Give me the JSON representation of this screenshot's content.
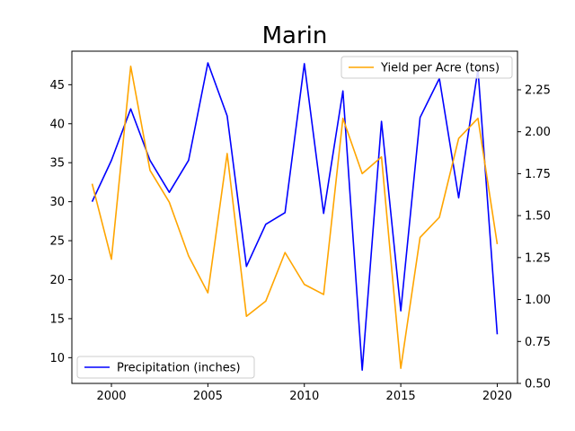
{
  "chart_data": {
    "type": "line",
    "title": "Marin",
    "x": [
      1999,
      2000,
      2001,
      2002,
      2003,
      2004,
      2005,
      2006,
      2007,
      2008,
      2009,
      2010,
      2011,
      2012,
      2013,
      2014,
      2015,
      2016,
      2017,
      2018,
      2019,
      2020
    ],
    "xlim": [
      1997.95,
      2021.05
    ],
    "xticks": [
      2000,
      2005,
      2010,
      2015,
      2020
    ],
    "left_axis": {
      "ylim": [
        6.7,
        49.3
      ],
      "ticks": [
        10,
        15,
        20,
        25,
        30,
        35,
        40,
        45
      ]
    },
    "right_axis": {
      "ylim": [
        0.5,
        2.48
      ],
      "ticks": [
        0.5,
        0.75,
        1.0,
        1.25,
        1.5,
        1.75,
        2.0,
        2.25
      ]
    },
    "series": [
      {
        "name": "Precipitation (inches)",
        "axis": "left",
        "color": "#0000ff",
        "legend_position": "lower-left",
        "values": [
          30.0,
          35.3,
          41.9,
          35.3,
          31.2,
          35.3,
          47.8,
          41.0,
          21.7,
          27.1,
          28.6,
          47.7,
          28.5,
          44.2,
          8.4,
          40.3,
          16.0,
          40.8,
          45.8,
          30.5,
          47.0,
          13.0
        ]
      },
      {
        "name": "Yield per Acre (tons)",
        "axis": "right",
        "color": "#ffa500",
        "legend_position": "upper-right",
        "values": [
          1.69,
          1.24,
          2.39,
          1.77,
          1.58,
          1.26,
          1.04,
          1.87,
          0.9,
          0.99,
          1.28,
          1.09,
          1.03,
          2.08,
          1.75,
          1.85,
          0.59,
          1.37,
          1.49,
          1.96,
          2.08,
          1.33
        ]
      }
    ]
  }
}
